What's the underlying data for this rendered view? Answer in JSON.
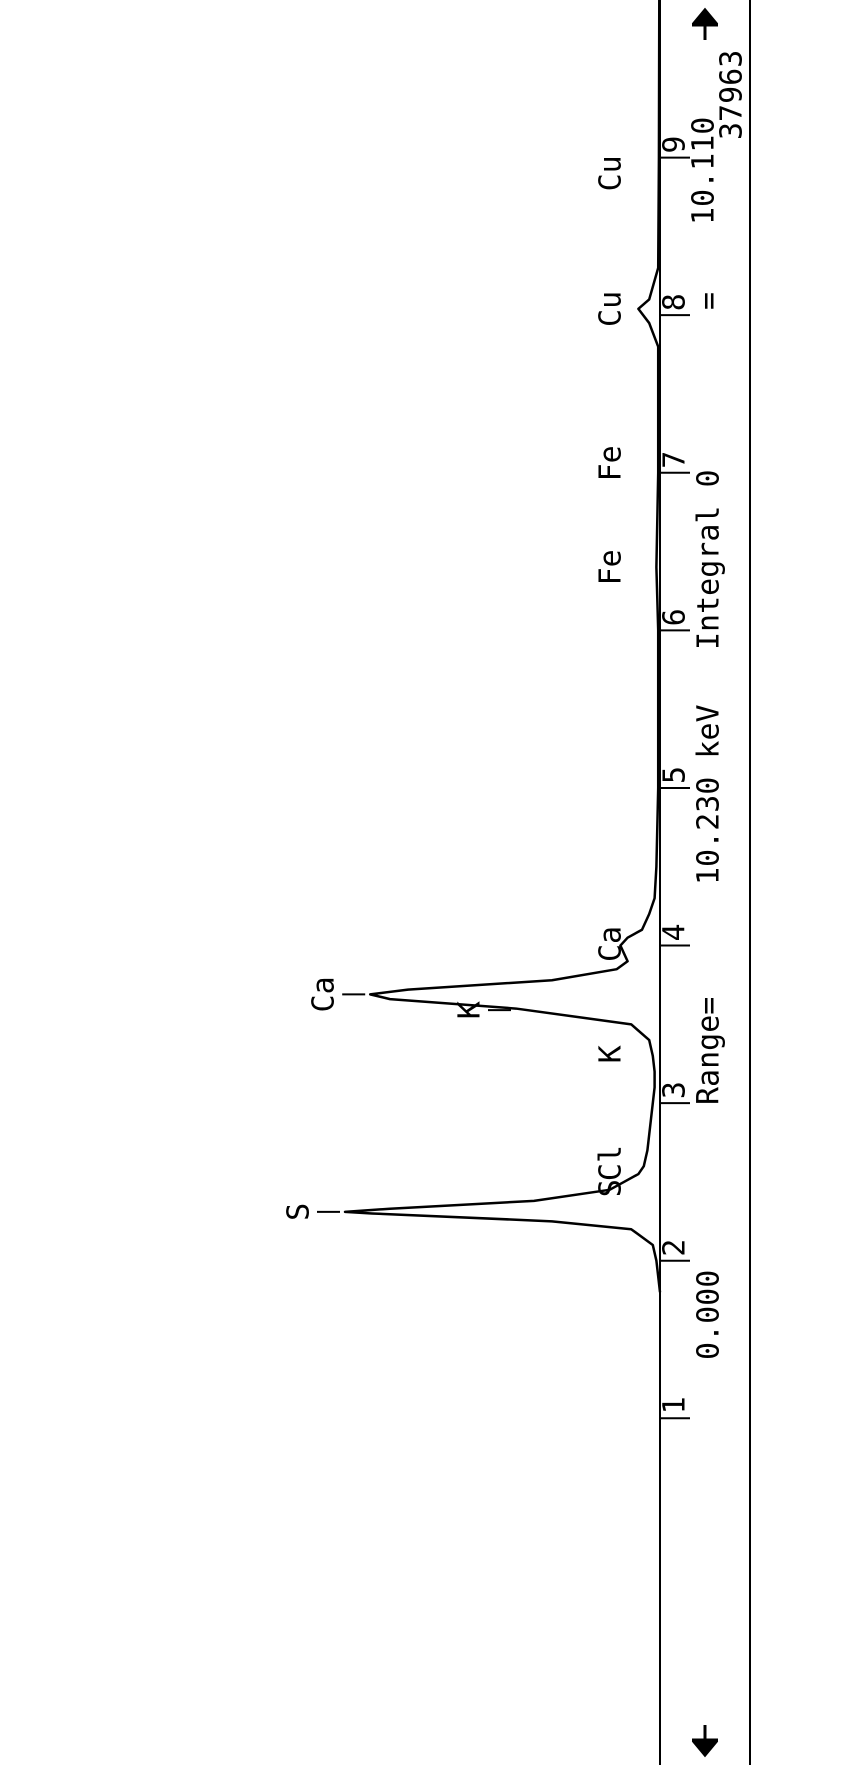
{
  "chart_data": {
    "type": "line",
    "x": [
      1.8,
      2.0,
      2.1,
      2.2,
      2.25,
      2.3,
      2.31,
      2.33,
      2.38,
      2.45,
      2.5,
      2.55,
      2.6,
      2.65,
      2.7,
      2.8,
      2.9,
      3.0,
      3.1,
      3.2,
      3.3,
      3.4,
      3.5,
      3.6,
      3.66,
      3.69,
      3.72,
      3.78,
      3.85,
      3.9,
      3.95,
      4.0,
      4.05,
      4.1,
      4.2,
      4.3,
      4.5,
      5.0,
      6.0,
      6.4,
      7.0,
      7.8,
      7.95,
      8.04,
      8.1,
      8.3,
      9.0,
      10.0
    ],
    "series": [
      {
        "color": "#000000",
        "values": [
          0,
          1,
          2,
          8,
          30,
          80,
          87.5,
          75,
          35,
          14,
          10,
          6,
          4.5,
          4,
          3.5,
          3,
          2.5,
          2,
          1.5,
          1.5,
          2,
          3,
          8,
          40,
          75,
          80.5,
          70,
          30,
          12,
          9,
          10,
          11,
          9,
          5,
          3,
          1.5,
          1,
          0.5,
          0.5,
          1,
          0.5,
          0.5,
          3,
          6,
          3,
          0.5,
          0.3,
          0.2
        ]
      }
    ],
    "xlim": [
      -1.2,
      10.0
    ],
    "xticks": [
      1,
      2,
      3,
      4,
      5,
      6,
      7,
      8,
      9
    ],
    "ylim": [
      0,
      100
    ],
    "annotations": [
      {
        "text": "S",
        "x": 2.31
      },
      {
        "text": "S",
        "x": 2.46
      },
      {
        "text": "Cl",
        "x": 2.62
      },
      {
        "text": "K",
        "x": 3.31
      },
      {
        "text": "K",
        "x": 3.59
      },
      {
        "text": "Ca",
        "x": 3.69
      },
      {
        "text": "Ca",
        "x": 4.01
      },
      {
        "text": "Fe",
        "x": 6.4
      },
      {
        "text": "Fe",
        "x": 7.06
      },
      {
        "text": "Cu",
        "x": 8.04
      },
      {
        "text": "Cu",
        "x": 8.9
      }
    ],
    "labels": {
      "start": "0.000",
      "range": "Range=",
      "end": "10.230 keV",
      "integral": "Integral 0",
      "equals": "=",
      "cursor": "10.110",
      "counts": "37963"
    }
  }
}
